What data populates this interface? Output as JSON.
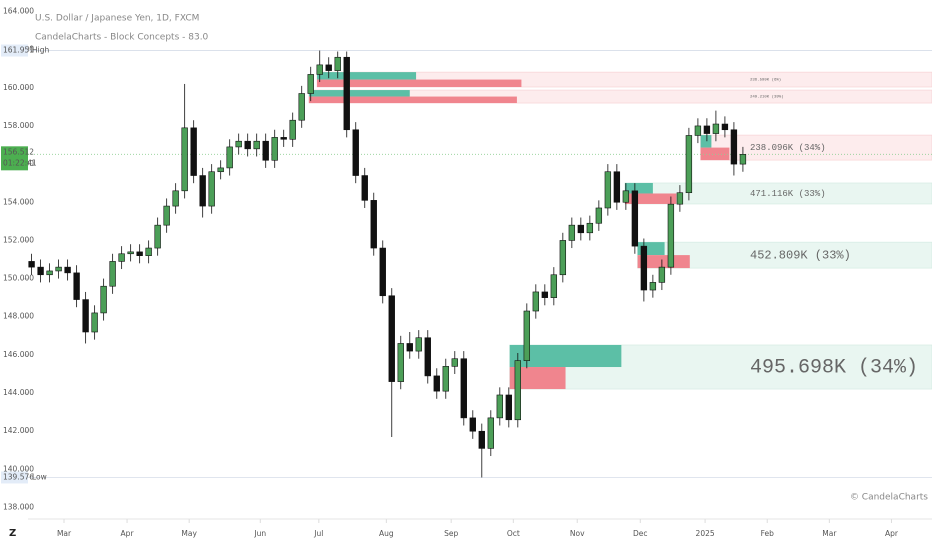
{
  "chart_data": {
    "type": "candlestick",
    "title": "U.S. Dollar / Japanese Yen, 1D, FXCM",
    "subtitle": "CandelaCharts - Block Concepts - 83.0",
    "credit": "© CandelaCharts",
    "up_color": "#4c9f58",
    "down_color": "#111111",
    "open": [
      150.9,
      150.6,
      150.2,
      150.4,
      150.6,
      150.3,
      148.9,
      147.2,
      148.2,
      149.6,
      150.9,
      151.3,
      151.4,
      151.2,
      151.6,
      152.8,
      153.8,
      154.6,
      157.9,
      155.4,
      153.8,
      155.6,
      155.8,
      156.9,
      157.2,
      156.8,
      157.2,
      156.2,
      157.4,
      157.3,
      158.3,
      159.7,
      160.7,
      161.2,
      160.9,
      161.6,
      157.8,
      155.4,
      154.1,
      151.6,
      149.1,
      144.6,
      146.6,
      146.2,
      146.9,
      144.9,
      144.1,
      145.4,
      145.8,
      142.7,
      142.0,
      141.1,
      142.7,
      143.9,
      142.6,
      145.7,
      148.3,
      149.3,
      149.0,
      150.2,
      152.0,
      152.8,
      152.4,
      152.9,
      153.7,
      155.6,
      154.0,
      154.6,
      151.7,
      149.4,
      149.8,
      150.6,
      153.9,
      154.5,
      157.5,
      158.0,
      157.6,
      158.1,
      157.8,
      156.0
    ],
    "high": [
      151.3,
      151.0,
      150.8,
      151.0,
      151.0,
      150.7,
      149.3,
      148.6,
      150.0,
      151.3,
      151.7,
      151.8,
      151.8,
      152.0,
      153.2,
      154.2,
      155.0,
      160.2,
      158.3,
      155.8,
      156.0,
      156.2,
      157.3,
      157.6,
      157.6,
      157.6,
      157.6,
      157.8,
      157.8,
      158.7,
      160.1,
      161.1,
      161.951,
      161.6,
      161.9,
      161.9,
      158.2,
      155.8,
      154.5,
      152.0,
      149.5,
      147.0,
      147.2,
      147.3,
      147.3,
      145.3,
      145.8,
      146.2,
      146.2,
      143.1,
      142.4,
      143.1,
      144.3,
      144.3,
      146.1,
      148.7,
      149.7,
      149.7,
      150.6,
      152.4,
      153.2,
      153.2,
      153.3,
      154.1,
      156.0,
      156.0,
      155.0,
      155.0,
      152.1,
      150.2,
      151.0,
      154.3,
      154.9,
      157.9,
      158.4,
      158.4,
      158.8,
      158.5,
      158.2,
      156.9
    ],
    "low": [
      150.2,
      149.8,
      149.8,
      150.0,
      149.9,
      148.5,
      146.6,
      146.8,
      147.8,
      149.2,
      150.5,
      150.9,
      150.8,
      150.8,
      151.2,
      152.4,
      153.4,
      154.2,
      155.0,
      153.2,
      153.4,
      155.2,
      155.4,
      156.5,
      156.4,
      156.4,
      155.8,
      155.8,
      156.9,
      156.9,
      157.9,
      159.3,
      160.3,
      160.5,
      160.5,
      157.4,
      155.0,
      153.7,
      151.2,
      148.7,
      141.7,
      144.2,
      145.8,
      145.8,
      144.5,
      143.7,
      143.7,
      145.0,
      142.3,
      141.6,
      139.576,
      140.7,
      142.3,
      142.2,
      142.2,
      145.3,
      147.9,
      148.6,
      148.6,
      149.8,
      151.6,
      152.0,
      152.0,
      152.5,
      153.3,
      153.6,
      153.6,
      151.3,
      148.8,
      149.0,
      149.4,
      150.2,
      153.5,
      154.1,
      157.1,
      157.2,
      157.2,
      157.4,
      155.4,
      155.6
    ],
    "close": [
      150.6,
      150.2,
      150.4,
      150.6,
      150.3,
      148.9,
      147.2,
      148.2,
      149.6,
      150.9,
      151.3,
      151.4,
      151.2,
      151.6,
      152.8,
      153.8,
      154.6,
      157.9,
      155.4,
      153.8,
      155.6,
      155.8,
      156.9,
      157.2,
      156.8,
      157.2,
      156.2,
      157.4,
      157.3,
      158.3,
      159.7,
      160.7,
      161.2,
      160.9,
      161.6,
      157.8,
      155.4,
      154.1,
      151.6,
      149.1,
      144.6,
      146.6,
      146.2,
      146.9,
      144.9,
      144.1,
      145.4,
      145.8,
      142.7,
      142.0,
      141.1,
      142.7,
      143.9,
      142.6,
      145.7,
      148.3,
      149.3,
      149.0,
      150.2,
      152.0,
      152.8,
      152.4,
      152.9,
      153.7,
      155.6,
      154.0,
      154.6,
      151.7,
      149.4,
      149.8,
      150.6,
      153.9,
      154.5,
      157.5,
      158.0,
      157.6,
      158.1,
      157.8,
      156.0,
      156.512
    ],
    "xlim": [
      -0.4,
      100
    ],
    "xticks": [
      {
        "value": 3.6,
        "label": "Mar"
      },
      {
        "value": 10.6,
        "label": "Apr"
      },
      {
        "value": 17.5,
        "label": "May"
      },
      {
        "value": 25.4,
        "label": "Jun"
      },
      {
        "value": 31.9,
        "label": "Jul"
      },
      {
        "value": 39.4,
        "label": "Aug"
      },
      {
        "value": 46.6,
        "label": "Sep"
      },
      {
        "value": 53.5,
        "label": "Oct"
      },
      {
        "value": 60.6,
        "label": "Nov"
      },
      {
        "value": 67.6,
        "label": "Dec"
      },
      {
        "value": 74.8,
        "label": "2025"
      },
      {
        "value": 81.7,
        "label": "Feb"
      },
      {
        "value": 88.6,
        "label": "Mar"
      },
      {
        "value": 95.5,
        "label": "Apr"
      }
    ],
    "ylim": [
      137.4,
      164.6
    ],
    "yticks": [
      {
        "value": 138,
        "label": "138.000"
      },
      {
        "value": 140,
        "label": "140.000"
      },
      {
        "value": 142,
        "label": "142.000"
      },
      {
        "value": 144,
        "label": "144.000"
      },
      {
        "value": 146,
        "label": "146.000"
      },
      {
        "value": 148,
        "label": "148.000"
      },
      {
        "value": 150,
        "label": "150.000"
      },
      {
        "value": 152,
        "label": "152.000"
      },
      {
        "value": 154,
        "label": "154.000"
      },
      {
        "value": 156,
        "label": "156.000"
      },
      {
        "value": 158,
        "label": "158.000"
      },
      {
        "value": 160,
        "label": "160.000"
      },
      {
        "value": 162,
        "label": "162.000"
      },
      {
        "value": 164,
        "label": "164.000"
      }
    ],
    "high_marker": {
      "value": 161.951,
      "label": "High"
    },
    "low_marker": {
      "value": 139.576,
      "label": "Low"
    },
    "last_price": {
      "value": 156.512,
      "countdown": "01:22:41",
      "color": "#4caf50"
    },
    "bull_color": "#5cbfa6",
    "bear_color": "#f0858e",
    "order_blocks": [
      {
        "kind": "bearish",
        "top": 160.82,
        "bottom": 160.04,
        "start": 31.7,
        "bull": 11,
        "bear": 22.7,
        "label": "236.599K (6%)"
      },
      {
        "kind": "bearish",
        "top": 159.88,
        "bottom": 159.2,
        "start": 30.8,
        "bull": 11.2,
        "bear": 23.1,
        "label": "249.210K (39%)"
      },
      {
        "kind": "bearish",
        "top": 157.52,
        "bottom": 156.21,
        "start": 74.3,
        "bull": 1.2,
        "bear": 3.2,
        "label": "238.096K (34%)"
      },
      {
        "kind": "bullish",
        "top": 155.01,
        "bottom": 153.91,
        "start": 65.9,
        "bull": 3.1,
        "bear": 5.7,
        "label": "471.116K (33%)"
      },
      {
        "kind": "bullish",
        "top": 151.91,
        "bottom": 150.55,
        "start": 67.3,
        "bull": 3,
        "bear": 5.8,
        "label": "452.809K (33%)"
      },
      {
        "kind": "bullish",
        "top": 146.52,
        "bottom": 144.21,
        "start": 53.1,
        "bull": 12.4,
        "bear": 6.2,
        "label": "495.698K (34%)"
      }
    ]
  }
}
